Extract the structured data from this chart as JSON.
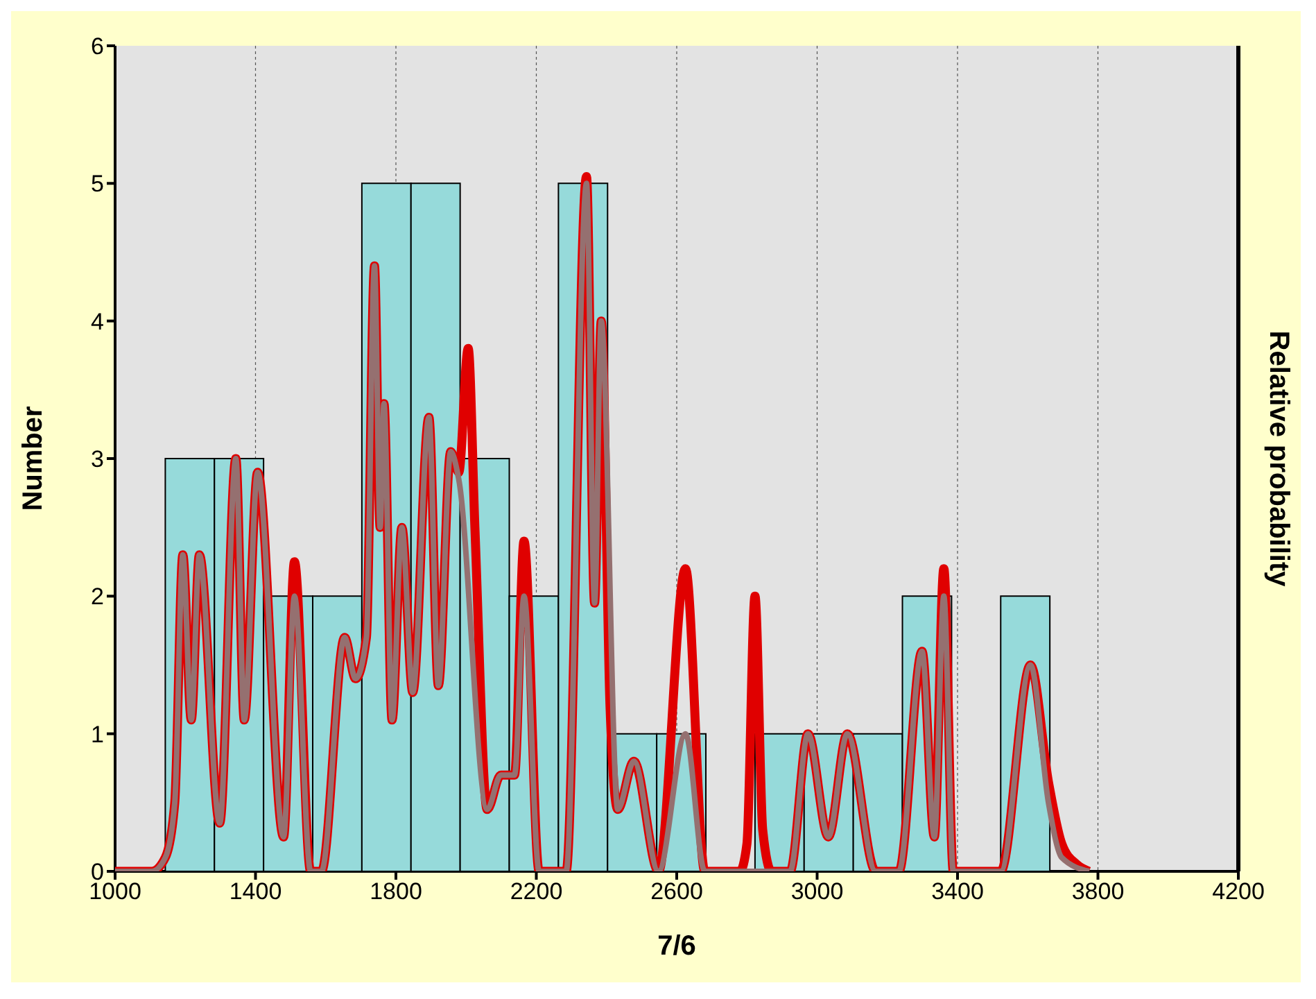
{
  "chart_data": {
    "type": "histogram",
    "xlabel": "7/6",
    "ylabel": "Number",
    "y2label": "Relative probability",
    "bins": [
      1143,
      1283,
      1423,
      1563,
      1703,
      1843,
      1983,
      2123,
      2263,
      2403,
      2543,
      2683,
      2823,
      2963,
      3103,
      3243,
      3383,
      3523,
      3663
    ],
    "values": [
      3,
      3,
      2,
      2,
      5,
      5,
      3,
      2,
      5,
      1,
      1,
      0,
      1,
      1,
      1,
      2,
      0,
      2
    ],
    "color": "#96dada",
    "xlim": [
      1000,
      4200
    ],
    "xticks": [
      1000,
      1400,
      1800,
      2200,
      2600,
      3000,
      3400,
      3800,
      4200
    ],
    "ylim": [
      0,
      6
    ],
    "yticks": [
      0,
      1,
      2,
      3,
      4,
      5,
      6
    ],
    "grid": "x",
    "series": [
      {
        "type": "line",
        "color": "#e00000",
        "x": [
          1000,
          1104,
          1143,
          1170,
          1193,
          1217,
          1240,
          1298,
          1344,
          1368,
          1406,
          1480,
          1511,
          1557,
          1588,
          1654,
          1685,
          1716,
          1739,
          1755,
          1766,
          1789,
          1817,
          1848,
          1894,
          1921,
          1956,
          1979,
          2006,
          2025,
          2060,
          2099,
          2138,
          2165,
          2208,
          2285,
          2343,
          2366,
          2385,
          2410,
          2432,
          2478,
          2548,
          2625,
          2680,
          2780,
          2800,
          2823,
          2845,
          2870,
          2923,
          2974,
          3032,
          3086,
          3167,
          3233,
          3299,
          3334,
          3361,
          3388,
          3523,
          3608,
          3659,
          3697,
          3740,
          3775
        ],
        "values": [
          0,
          0,
          0.1,
          0.5,
          2.3,
          1.1,
          2.3,
          0.35,
          3.0,
          1.1,
          2.9,
          0.25,
          2.25,
          0,
          0,
          1.7,
          1.4,
          1.7,
          4.4,
          2.5,
          3.4,
          1.1,
          2.5,
          1.3,
          3.3,
          1.35,
          3.05,
          2.9,
          3.8,
          2.5,
          0.45,
          0.7,
          0.7,
          2.4,
          0,
          0,
          5.05,
          1.95,
          4.0,
          1.2,
          0.45,
          0.8,
          0,
          2.2,
          0,
          0,
          0.2,
          2.0,
          0.3,
          0,
          0,
          1.0,
          0.25,
          1.0,
          0,
          0,
          1.6,
          0.25,
          2.2,
          0,
          0,
          1.5,
          0.65,
          0.2,
          0.05,
          0
        ]
      },
      {
        "type": "line",
        "color": "#957070",
        "x": [
          1000,
          1104,
          1143,
          1170,
          1193,
          1217,
          1240,
          1298,
          1344,
          1368,
          1406,
          1480,
          1511,
          1557,
          1588,
          1654,
          1685,
          1716,
          1739,
          1755,
          1766,
          1789,
          1817,
          1848,
          1894,
          1921,
          1956,
          1979,
          2060,
          2099,
          2138,
          2165,
          2208,
          2285,
          2343,
          2366,
          2385,
          2432,
          2478,
          2548,
          2625,
          2680,
          2923,
          2974,
          3032,
          3086,
          3167,
          3233,
          3299,
          3334,
          3361,
          3388,
          3523,
          3608,
          3659,
          3697,
          3775
        ],
        "values": [
          0,
          0,
          0.1,
          0.5,
          2.3,
          1.1,
          2.3,
          0.35,
          3.0,
          1.1,
          2.9,
          0.25,
          2.0,
          0,
          0,
          1.7,
          1.4,
          1.7,
          4.4,
          2.5,
          3.4,
          1.1,
          2.5,
          1.3,
          3.3,
          1.35,
          3.05,
          2.85,
          0.45,
          0.7,
          0.7,
          2.0,
          0,
          0,
          5.0,
          1.95,
          4.0,
          0.45,
          0.8,
          0,
          1.0,
          0,
          0,
          1.0,
          0.25,
          1.0,
          0,
          0,
          1.6,
          0.25,
          2.0,
          0,
          0,
          1.5,
          0.5,
          0.1,
          0
        ]
      }
    ]
  }
}
